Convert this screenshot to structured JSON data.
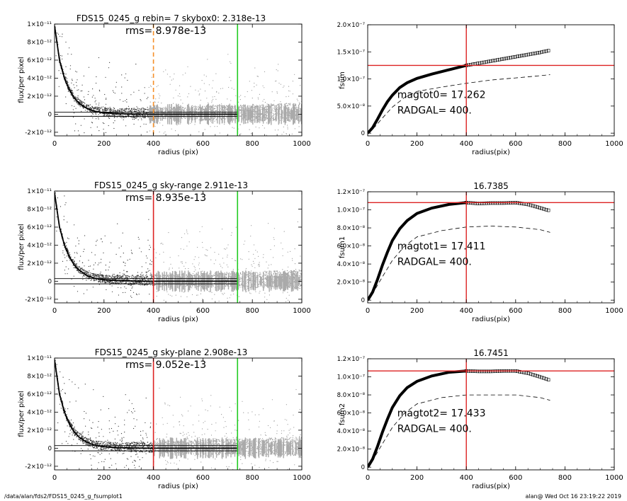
{
  "page": {
    "footer_left": "/data/alan/fds2/FDS15_0245_g_fsumplot1",
    "footer_right": "alan@  Wed Oct 16 23:19:22 2019"
  },
  "chart_data": [
    {
      "type": "scatter",
      "title": "FDS15_0245_g rebin= 7    skybox0:  2.318e-13",
      "annotation": "rms= 8.978e-13",
      "xlabel": "radius (pix)",
      "ylabel": "flux/per pixel",
      "xlim": [
        0,
        1000
      ],
      "ylim": [
        -2.4e-12,
        1e-11
      ],
      "x_ticks": [
        0,
        200,
        400,
        600,
        800,
        1000
      ],
      "x_tick_labels": [
        "0",
        "200",
        "400",
        "600",
        "800",
        "1000"
      ],
      "y_ticks": [
        -2e-12,
        0,
        2e-12,
        4e-12,
        6e-12,
        8e-12,
        1e-11
      ],
      "y_tick_labels": [
        "-2×10⁻¹²",
        "0",
        "2×10⁻¹²",
        "4×10⁻¹²",
        "6×10⁻¹²",
        "8×10⁻¹²",
        "1×10⁻¹¹"
      ],
      "vlines": [
        {
          "x": 400,
          "color": "#f5902a",
          "style": "dashed"
        },
        {
          "x": 740,
          "color": "#22cc22",
          "style": "solid"
        }
      ],
      "hlines": [
        2.318e-13,
        -2.318e-13
      ],
      "profile": {
        "x": [
          0,
          20,
          40,
          60,
          80,
          100,
          130,
          160,
          200,
          260,
          330,
          400,
          500,
          740
        ],
        "y": [
          9.8e-12,
          6e-12,
          4e-12,
          2.7e-12,
          1.8e-12,
          1.2e-12,
          6.5e-13,
          3.5e-13,
          1.6e-13,
          6e-14,
          2e-14,
          0,
          0,
          0
        ]
      },
      "scatter_extent": 1000,
      "error_bar_start": 380
    },
    {
      "type": "line",
      "title": "",
      "ylabel": "fsum",
      "xlabel": "radius(pix)",
      "xlim": [
        0,
        1000
      ],
      "ylim": [
        -5e-09,
        2e-07
      ],
      "x_ticks": [
        0,
        200,
        400,
        600,
        800,
        1000
      ],
      "x_tick_labels": [
        "0",
        "200",
        "400",
        "600",
        "800",
        "1000"
      ],
      "y_ticks": [
        0,
        5e-08,
        1e-07,
        1.5e-07,
        2e-07
      ],
      "y_tick_labels": [
        "0",
        "5.0×10⁻⁸",
        "1.0×10⁻⁷",
        "1.5×10⁻⁷",
        "2.0×10⁻⁷"
      ],
      "annotation_lines": [
        "magtot0=  17.262",
        "RADGAL=    400."
      ],
      "annotation_anchor": [
        120,
        6.5e-08
      ],
      "cross": {
        "x": 400,
        "y": 1.25e-07
      },
      "solid": {
        "x": [
          0,
          20,
          40,
          60,
          80,
          100,
          130,
          160,
          200,
          260,
          330,
          400,
          500,
          600,
          700,
          740
        ],
        "y": [
          0,
          1e-08,
          2.6e-08,
          4.3e-08,
          5.8e-08,
          7e-08,
          8.4e-08,
          9.3e-08,
          1.01e-07,
          1.09e-07,
          1.17e-07,
          1.25e-07,
          1.33e-07,
          1.41e-07,
          1.49e-07,
          1.53e-07
        ]
      },
      "dashed": {
        "x": [
          0,
          30,
          60,
          100,
          150,
          200,
          300,
          400,
          500,
          600,
          700,
          740
        ],
        "y": [
          0,
          1.2e-08,
          2.8e-08,
          4.8e-08,
          6.6e-08,
          7.7e-08,
          8.5e-08,
          9.2e-08,
          9.8e-08,
          1.02e-07,
          1.06e-07,
          1.08e-07
        ]
      },
      "markers_from": 400
    },
    {
      "type": "scatter",
      "title": "FDS15_0245_g sky-range  2.911e-13",
      "annotation": "rms= 8.935e-13",
      "xlabel": "radius (pix)",
      "ylabel": "flux/per pixel",
      "xlim": [
        0,
        1000
      ],
      "ylim": [
        -2.4e-12,
        1e-11
      ],
      "x_ticks": [
        0,
        200,
        400,
        600,
        800,
        1000
      ],
      "x_tick_labels": [
        "0",
        "200",
        "400",
        "600",
        "800",
        "1000"
      ],
      "y_ticks": [
        -2e-12,
        0,
        2e-12,
        4e-12,
        6e-12,
        8e-12,
        1e-11
      ],
      "y_tick_labels": [
        "-2×10⁻¹²",
        "0",
        "2×10⁻¹²",
        "4×10⁻¹²",
        "6×10⁻¹²",
        "8×10⁻¹²",
        "1×10⁻¹¹"
      ],
      "vlines": [
        {
          "x": 400,
          "color": "#dd2222",
          "style": "solid"
        },
        {
          "x": 740,
          "color": "#22cc22",
          "style": "solid"
        }
      ],
      "hlines": [
        2.911e-13,
        -2.911e-13
      ],
      "profile": {
        "x": [
          0,
          20,
          40,
          60,
          80,
          100,
          130,
          160,
          200,
          260,
          330,
          400,
          500,
          740
        ],
        "y": [
          9.8e-12,
          6e-12,
          4e-12,
          2.7e-12,
          1.8e-12,
          1.2e-12,
          6.5e-13,
          3.5e-13,
          1.6e-13,
          6e-14,
          2e-14,
          0,
          0,
          0
        ]
      },
      "scatter_extent": 1000,
      "error_bar_start": 400
    },
    {
      "type": "line",
      "title": "16.7385",
      "ylabel": "fsum1",
      "xlabel": "radius(pix)",
      "xlim": [
        0,
        1000
      ],
      "ylim": [
        -3e-09,
        1.2e-07
      ],
      "x_ticks": [
        0,
        200,
        400,
        600,
        800,
        1000
      ],
      "x_tick_labels": [
        "0",
        "200",
        "400",
        "600",
        "800",
        "1000"
      ],
      "y_ticks": [
        0,
        2e-08,
        4e-08,
        6e-08,
        8e-08,
        1e-07,
        1.2e-07
      ],
      "y_tick_labels": [
        "0",
        "2.0×10⁻⁸",
        "4.0×10⁻⁸",
        "6.0×10⁻⁸",
        "8.0×10⁻⁸",
        "1.0×10⁻⁷",
        "1.2×10⁻⁷"
      ],
      "annotation_lines": [
        "magtot1=  17.411",
        "RADGAL=    400."
      ],
      "annotation_anchor": [
        120,
        5.6e-08
      ],
      "cross": {
        "x": 400,
        "y": 1.08e-07
      },
      "solid": {
        "x": [
          0,
          20,
          40,
          60,
          80,
          100,
          130,
          160,
          200,
          260,
          330,
          400,
          450,
          500,
          550,
          600,
          650,
          700,
          740
        ],
        "y": [
          0,
          9e-09,
          2.3e-08,
          3.9e-08,
          5.3e-08,
          6.6e-08,
          7.9e-08,
          8.8e-08,
          9.6e-08,
          1.02e-07,
          1.06e-07,
          1.08e-07,
          1.07e-07,
          1.075e-07,
          1.075e-07,
          1.08e-07,
          1.06e-07,
          1.02e-07,
          9.9e-08
        ]
      },
      "dashed": {
        "x": [
          0,
          30,
          60,
          100,
          150,
          200,
          300,
          400,
          500,
          600,
          700,
          740
        ],
        "y": [
          0,
          1.2e-08,
          2.6e-08,
          4.4e-08,
          6e-08,
          7e-08,
          7.7e-08,
          8.1e-08,
          8.2e-08,
          8.1e-08,
          7.8e-08,
          7.5e-08
        ]
      },
      "markers_from": 400
    },
    {
      "type": "scatter",
      "title": "FDS15_0245_g sky-plane  2.908e-13",
      "annotation": "rms= 9.052e-13",
      "xlabel": "radius (pix)",
      "ylabel": "flux/per pixel",
      "xlim": [
        0,
        1000
      ],
      "ylim": [
        -2.4e-12,
        1e-11
      ],
      "x_ticks": [
        0,
        200,
        400,
        600,
        800,
        1000
      ],
      "x_tick_labels": [
        "0",
        "200",
        "400",
        "600",
        "800",
        "1000"
      ],
      "y_ticks": [
        -2e-12,
        0,
        2e-12,
        4e-12,
        6e-12,
        8e-12,
        1e-11
      ],
      "y_tick_labels": [
        "-2×10⁻¹²",
        "0",
        "2×10⁻¹²",
        "4×10⁻¹²",
        "6×10⁻¹²",
        "8×10⁻¹²",
        "1×10⁻¹¹"
      ],
      "vlines": [
        {
          "x": 400,
          "color": "#dd2222",
          "style": "solid"
        },
        {
          "x": 740,
          "color": "#22cc22",
          "style": "solid"
        }
      ],
      "hlines": [
        2.908e-13,
        -2.908e-13
      ],
      "profile": {
        "x": [
          0,
          20,
          40,
          60,
          80,
          100,
          130,
          160,
          200,
          260,
          330,
          400,
          500,
          740
        ],
        "y": [
          9.8e-12,
          6e-12,
          4e-12,
          2.7e-12,
          1.8e-12,
          1.2e-12,
          6.5e-13,
          3.5e-13,
          1.6e-13,
          6e-14,
          2e-14,
          0,
          0,
          0
        ]
      },
      "scatter_extent": 1000,
      "error_bar_start": 400
    },
    {
      "type": "line",
      "title": "16.7451",
      "ylabel": "fsum2",
      "xlabel": "radius(pix)",
      "xlim": [
        0,
        1000
      ],
      "ylim": [
        -3e-09,
        1.2e-07
      ],
      "x_ticks": [
        0,
        200,
        400,
        600,
        800,
        1000
      ],
      "x_tick_labels": [
        "0",
        "200",
        "400",
        "600",
        "800",
        "1000"
      ],
      "y_ticks": [
        0,
        2e-08,
        4e-08,
        6e-08,
        8e-08,
        1e-07,
        1.2e-07
      ],
      "y_tick_labels": [
        "0",
        "2.0×10⁻⁸",
        "4.0×10⁻⁸",
        "6.0×10⁻⁸",
        "8.0×10⁻⁸",
        "1.0×10⁻⁷",
        "1.2×10⁻⁷"
      ],
      "annotation_lines": [
        "magtot2=  17.433",
        "RADGAL=    400."
      ],
      "annotation_anchor": [
        120,
        5.6e-08
      ],
      "cross": {
        "x": 400,
        "y": 1.065e-07
      },
      "solid": {
        "x": [
          0,
          20,
          40,
          60,
          80,
          100,
          130,
          160,
          200,
          260,
          330,
          400,
          450,
          500,
          550,
          600,
          650,
          700,
          740
        ],
        "y": [
          0,
          9e-09,
          2.3e-08,
          3.9e-08,
          5.3e-08,
          6.6e-08,
          7.9e-08,
          8.8e-08,
          9.5e-08,
          1.01e-07,
          1.05e-07,
          1.065e-07,
          1.06e-07,
          1.06e-07,
          1.065e-07,
          1.065e-07,
          1.04e-07,
          1e-07,
          9.6e-08
        ]
      },
      "dashed": {
        "x": [
          0,
          30,
          60,
          100,
          150,
          200,
          300,
          400,
          500,
          600,
          700,
          740
        ],
        "y": [
          0,
          1.2e-08,
          2.6e-08,
          4.4e-08,
          6e-08,
          7e-08,
          7.7e-08,
          8e-08,
          8e-08,
          8e-08,
          7.7e-08,
          7.4e-08
        ]
      },
      "markers_from": 400
    }
  ]
}
